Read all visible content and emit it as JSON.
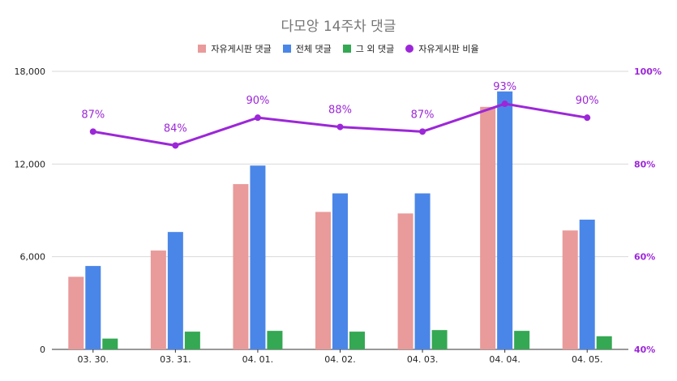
{
  "chart_data": {
    "type": "bar",
    "title": "다모앙 14주차 댓글",
    "categories": [
      "03. 30.",
      "03. 31.",
      "04. 01.",
      "04. 02.",
      "04. 03.",
      "04. 04.",
      "04. 05."
    ],
    "series": [
      {
        "name": "자유게시판 댓글",
        "type": "bar",
        "axis": "left",
        "color": "#e99a9a",
        "values": [
          4700,
          6400,
          10700,
          8900,
          8800,
          15700,
          7700
        ]
      },
      {
        "name": "전체 댓글",
        "type": "bar",
        "axis": "left",
        "color": "#4a86e8",
        "values": [
          5400,
          7600,
          11900,
          10100,
          10100,
          16700,
          8400
        ]
      },
      {
        "name": "그 외 댓글",
        "type": "bar",
        "axis": "left",
        "color": "#34a853",
        "values": [
          700,
          1150,
          1200,
          1150,
          1250,
          1200,
          850
        ]
      },
      {
        "name": "자유게시판 비율",
        "type": "line",
        "axis": "right",
        "color": "#9c27d8",
        "values": [
          87,
          84,
          90,
          88,
          87,
          93,
          90
        ],
        "labels": [
          "87%",
          "84%",
          "90%",
          "88%",
          "87%",
          "93%",
          "90%"
        ]
      }
    ],
    "y_left": {
      "min": 0,
      "max": 18000,
      "ticks": [
        0,
        6000,
        12000,
        18000
      ],
      "tick_labels": [
        "0",
        "6,000",
        "12,000",
        "18,000"
      ]
    },
    "y_right": {
      "min": 40,
      "max": 100,
      "ticks": [
        40,
        60,
        80,
        100
      ],
      "tick_labels": [
        "40%",
        "60%",
        "80%",
        "100%"
      ]
    },
    "grid": true,
    "legend_position": "top"
  }
}
